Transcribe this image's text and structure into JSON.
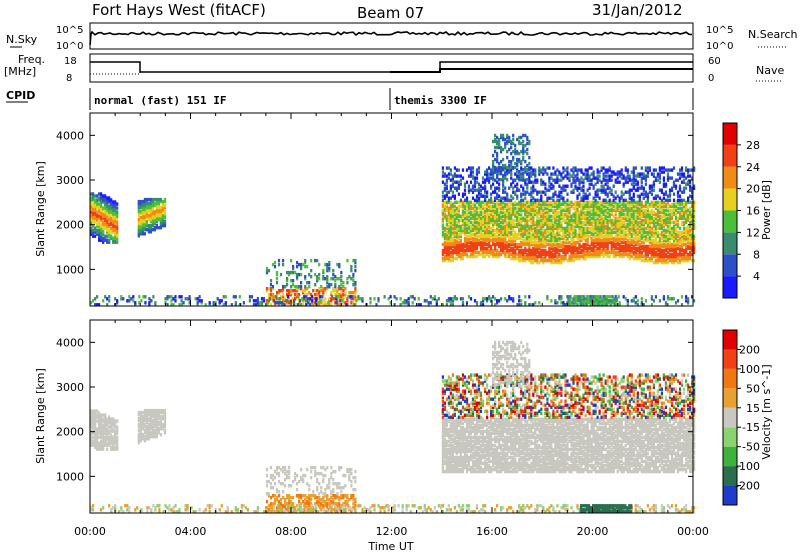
{
  "header": {
    "station": "Fort Hays West (fitACF)",
    "beam": "Beam 07",
    "date": "31/Jan/2012"
  },
  "top_panels": {
    "nsky_label": "N.Sky",
    "nsky_ticks": [
      "10^5",
      "10^0"
    ],
    "nsearch_label": "N.Search",
    "nsearch_ticks": [
      "10^5",
      "10^0"
    ],
    "freq_label_1": "Freq.",
    "freq_label_2": "[MHz]",
    "freq_ticks": [
      "18",
      "8"
    ],
    "nave_label": "Nave",
    "nave_ticks": [
      "60",
      "0"
    ],
    "cpid_label": "CPID",
    "modes": [
      {
        "label": "normal (fast) 151 IF",
        "start_hour": 0
      },
      {
        "label": "themis 3300 IF",
        "start_hour": 12
      }
    ]
  },
  "chart_data": [
    {
      "type": "heatmap",
      "name": "power",
      "ylabel": "Slant Range [km]",
      "yticks": [
        "1000",
        "2000",
        "3000",
        "4000"
      ],
      "ylim": [
        180,
        4500
      ],
      "xlim": [
        0,
        24
      ],
      "colorbar_label": "Power [dB]",
      "colorbar_ticks": [
        "4",
        "8",
        "12",
        "16",
        "20",
        "24",
        "28"
      ],
      "colorbar_range": [
        0,
        32
      ],
      "colors": [
        "#1a1aff",
        "#2d50c8",
        "#3a8c6e",
        "#4bbf3a",
        "#e8d020",
        "#f08c14",
        "#f04014",
        "#e00000"
      ]
    },
    {
      "type": "heatmap",
      "name": "velocity",
      "ylabel": "Slant Range [km]",
      "yticks": [
        "1000",
        "2000",
        "3000",
        "4000"
      ],
      "ylim": [
        180,
        4500
      ],
      "xlim": [
        0,
        24
      ],
      "colorbar_label": "Velocity [m s^-1]",
      "colorbar_ticks": [
        "200",
        "100",
        "50",
        "15",
        "-15",
        "-50",
        "-100",
        "-200"
      ],
      "colors": [
        "#1e3ccc",
        "#2a6e50",
        "#3cb43c",
        "#8cd26e",
        "#c8c8c0",
        "#e8a030",
        "#f07810",
        "#f04014",
        "#e00000"
      ]
    }
  ],
  "xaxis": {
    "ticks": [
      "00:00",
      "04:00",
      "08:00",
      "12:00",
      "16:00",
      "20:00",
      "00:00"
    ],
    "label": "Time UT"
  }
}
